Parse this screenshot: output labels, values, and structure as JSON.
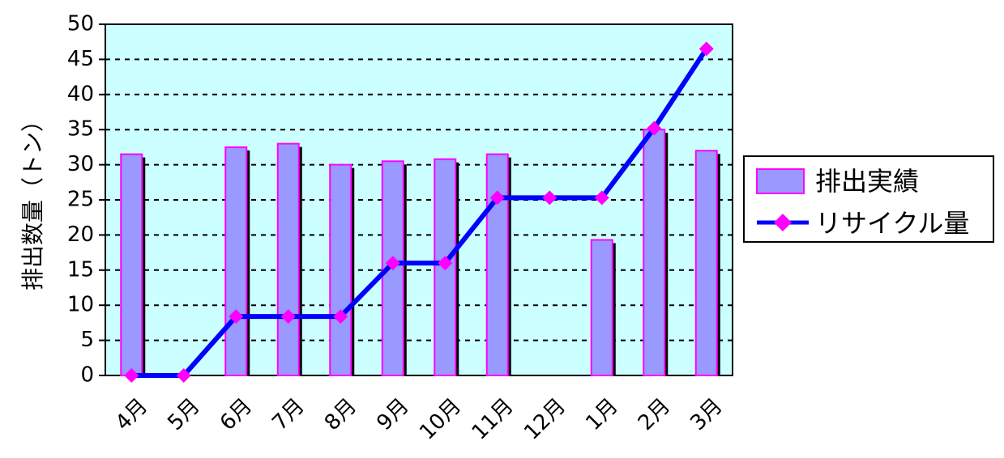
{
  "chart_data": {
    "type": "bar",
    "categories": [
      "4月",
      "5月",
      "6月",
      "7月",
      "8月",
      "9月",
      "10月",
      "11月",
      "12月",
      "1月",
      "2月",
      "3月"
    ],
    "series": [
      {
        "name": "排出実績",
        "type": "bar",
        "values": [
          31.5,
          null,
          32.5,
          33,
          30,
          30.5,
          30.8,
          31.5,
          null,
          19.3,
          35,
          32
        ]
      },
      {
        "name": "リサイクル量",
        "type": "line",
        "values": [
          0,
          0,
          8.4,
          8.4,
          8.4,
          16,
          16,
          25.3,
          25.3,
          25.3,
          35.2,
          46.5
        ]
      }
    ],
    "ylabel": "排出数量（トン）",
    "xlabel": "",
    "ylim": [
      0,
      50
    ],
    "yticks": [
      "0",
      "5",
      "10",
      "15",
      "20",
      "25",
      "30",
      "35",
      "40",
      "45",
      "50"
    ],
    "grid": true,
    "legend_position": "right",
    "colors": {
      "plot_background": "#ccffff",
      "bar_fill": "#9999ff",
      "bar_border": "#ff00ff",
      "bar_shadow": "#000000",
      "line": "#0000ff",
      "marker": "#ff00ff"
    }
  }
}
